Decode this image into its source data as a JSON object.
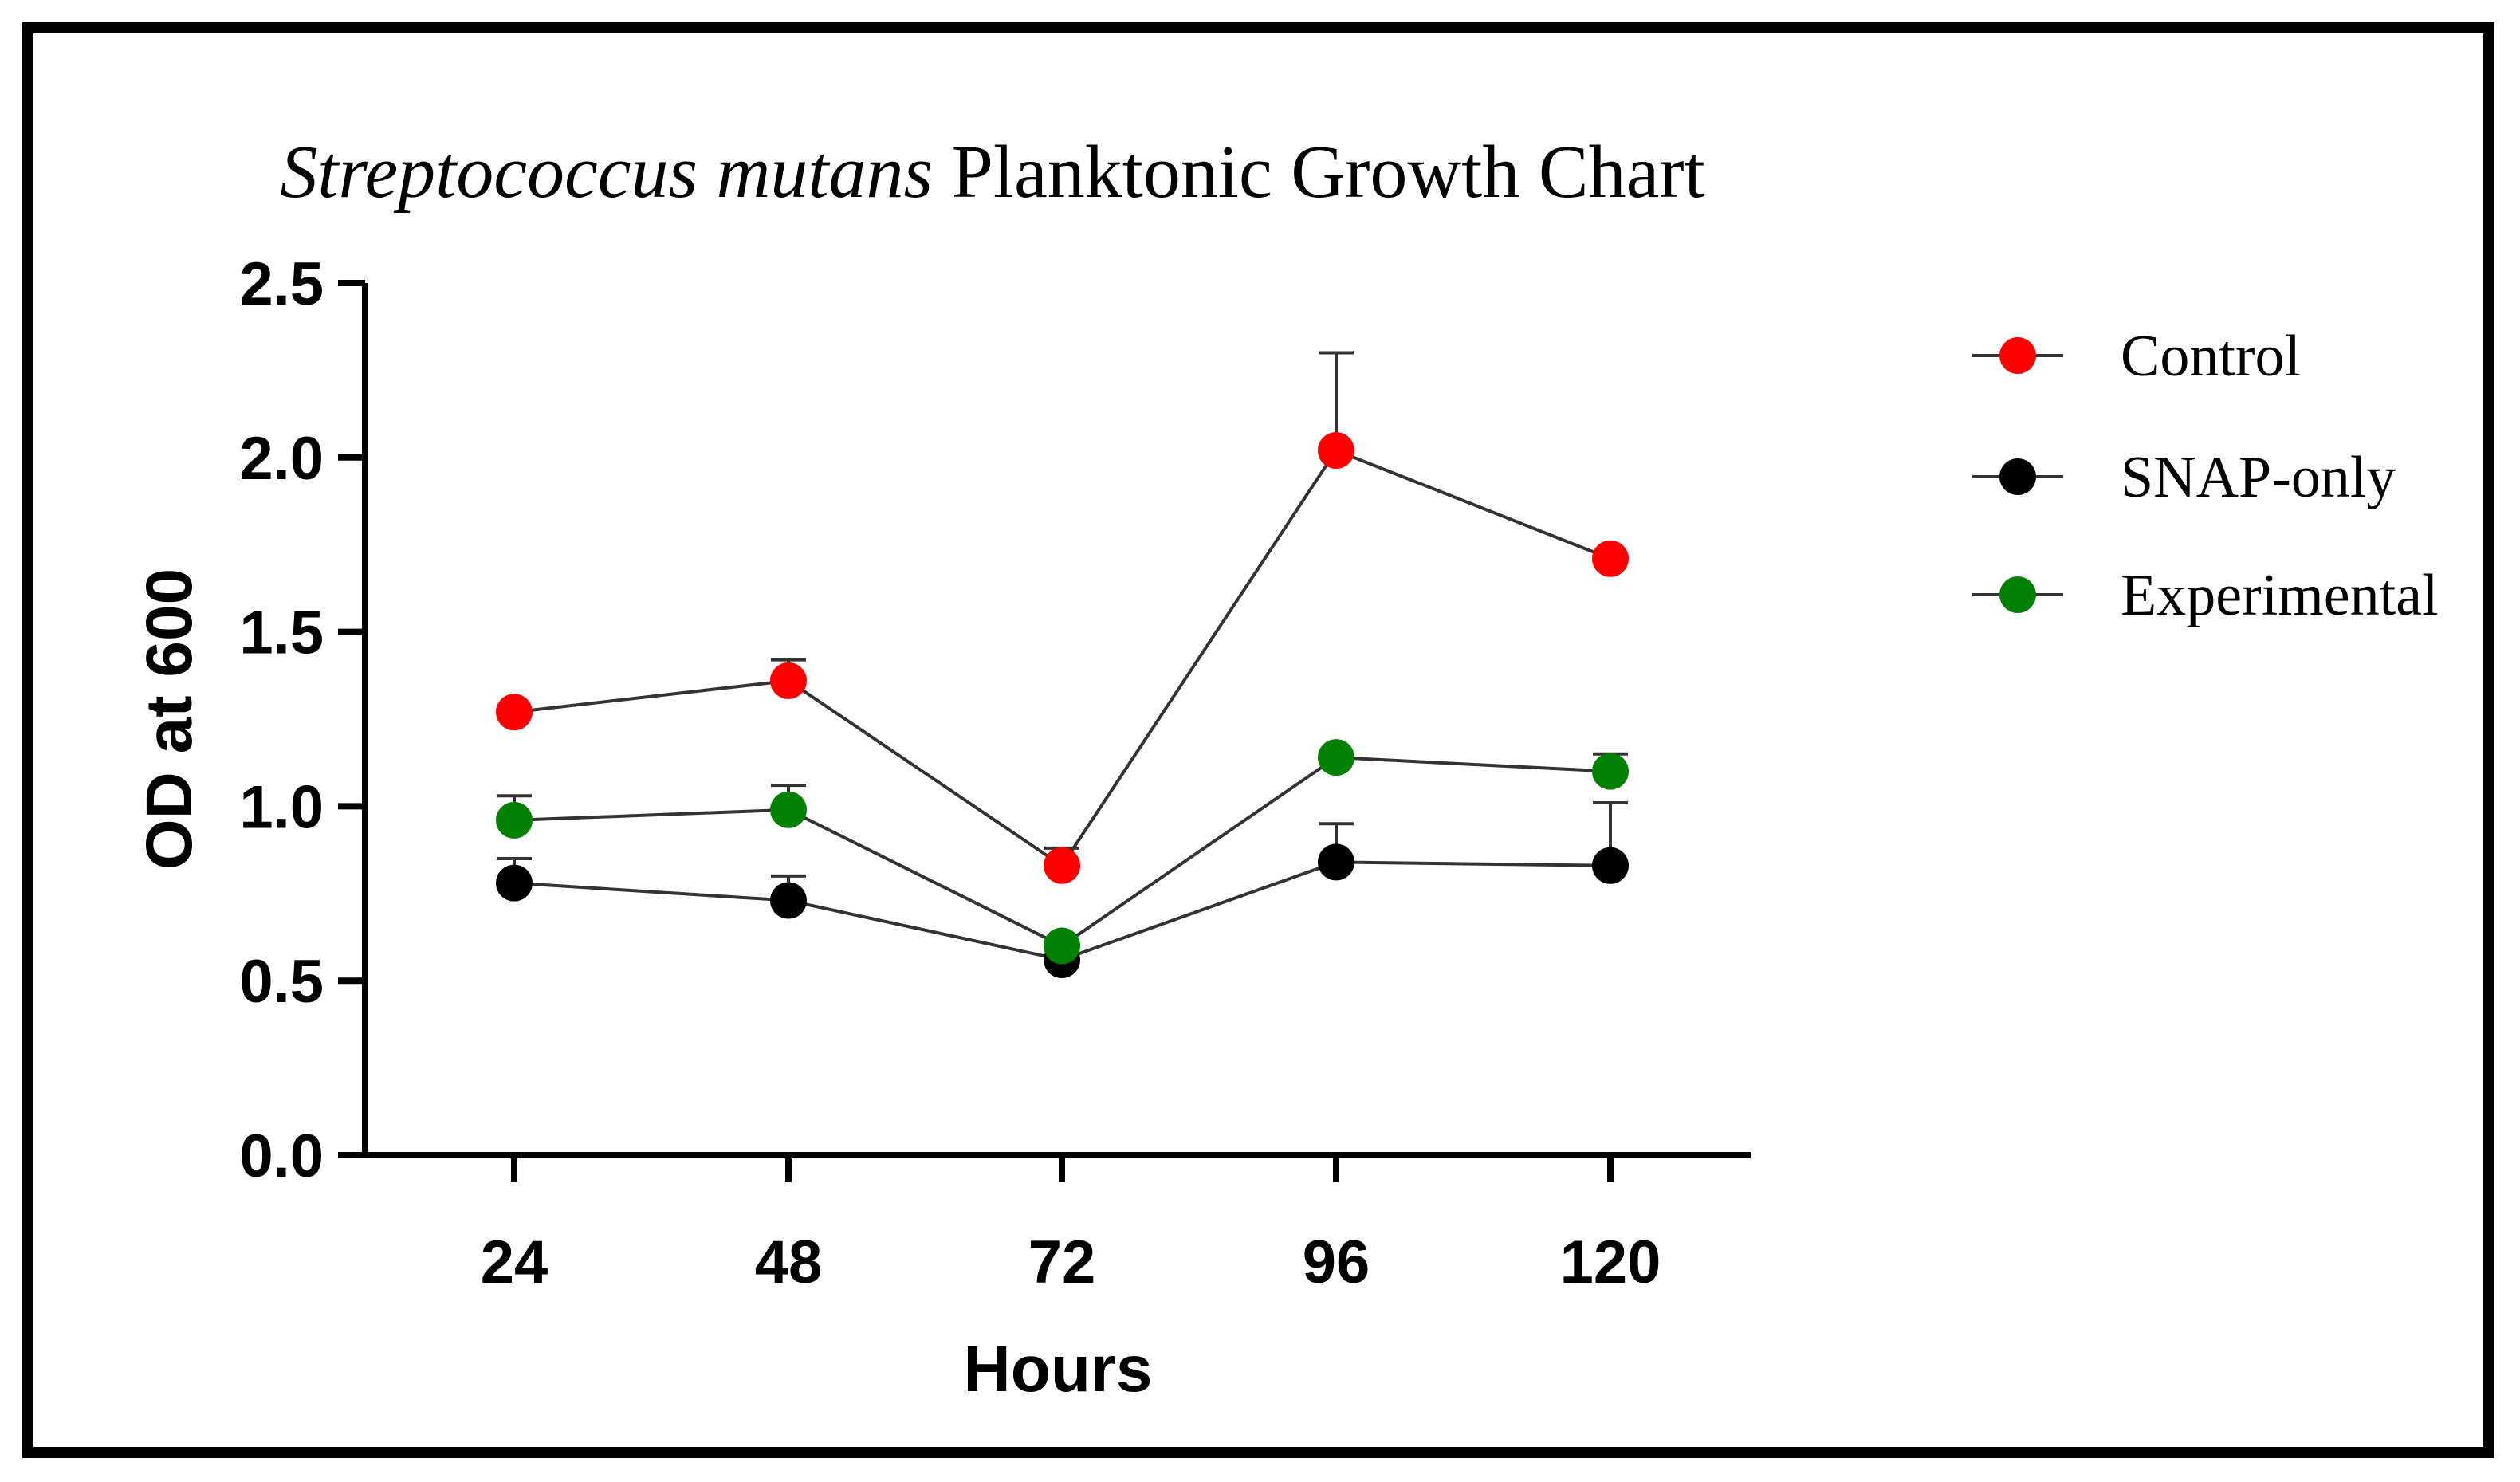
{
  "chart_data": {
    "type": "line",
    "title_italic": "Streptococcus mutans",
    "title_rest": " Planktonic Growth Chart",
    "xlabel": "Hours",
    "ylabel": "OD at 600",
    "categories": [
      "24",
      "48",
      "72",
      "96",
      "120"
    ],
    "ylim": [
      0,
      2.5
    ],
    "yticks": [
      "0.0",
      "0.5",
      "1.0",
      "1.5",
      "2.0",
      "2.5"
    ],
    "series": [
      {
        "name": "Control",
        "color": "#ff0000",
        "values": [
          1.27,
          1.36,
          0.83,
          2.02,
          1.71
        ],
        "errors": [
          0,
          0.06,
          0.05,
          0.28,
          0
        ]
      },
      {
        "name": "SNAP-only",
        "color": "#000000",
        "values": [
          0.78,
          0.73,
          0.56,
          0.84,
          0.83
        ],
        "errors": [
          0.07,
          0.07,
          0,
          0.11,
          0.18
        ]
      },
      {
        "name": "Experimental",
        "color": "#008000",
        "values": [
          0.96,
          0.99,
          0.6,
          1.14,
          1.1
        ],
        "errors": [
          0.07,
          0.07,
          0,
          0,
          0.05
        ]
      }
    ],
    "legend_position": "right"
  }
}
